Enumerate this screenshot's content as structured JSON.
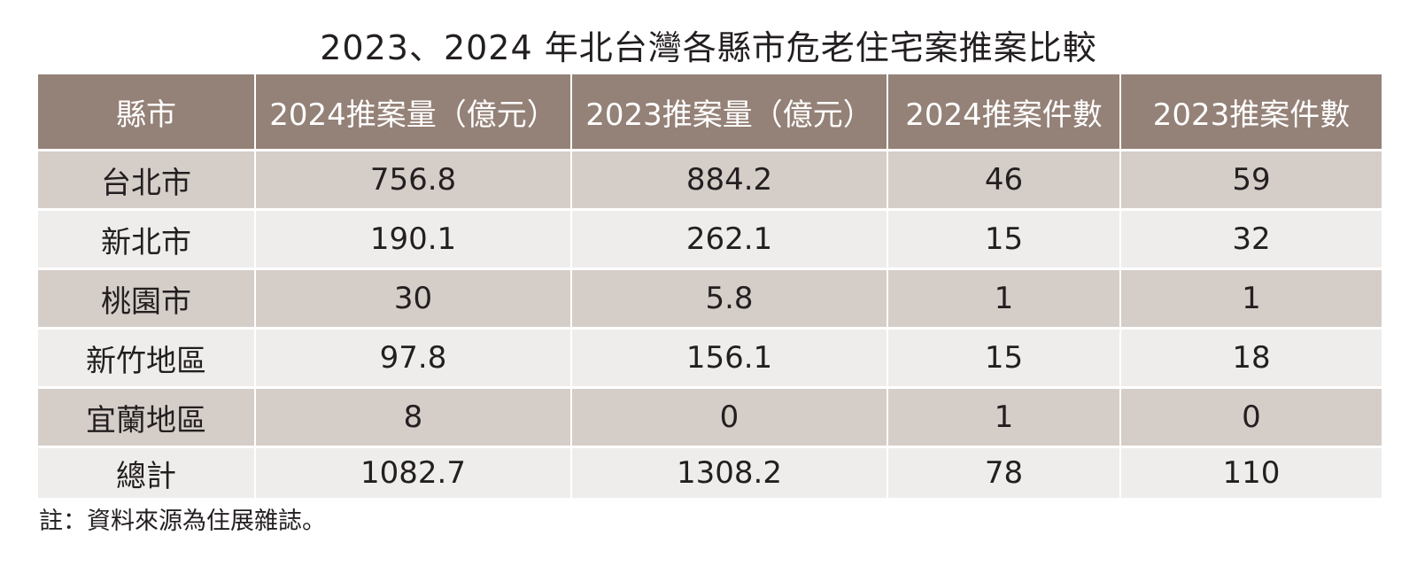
{
  "title": "2023、2024 年北台灣各縣市危老住宅案推案比較",
  "table": {
    "headers": [
      "縣市",
      "2024推案量（億元）",
      "2023推案量（億元）",
      "2024推案件數",
      "2023推案件數"
    ],
    "rows": [
      [
        "台北市",
        "756.8",
        "884.2",
        "46",
        "59"
      ],
      [
        "新北市",
        "190.1",
        "262.1",
        "15",
        "32"
      ],
      [
        "桃園市",
        "30",
        "5.8",
        "1",
        "1"
      ],
      [
        "新竹地區",
        "97.8",
        "156.1",
        "15",
        "18"
      ],
      [
        "宜蘭地區",
        "8",
        "0",
        "1",
        "0"
      ],
      [
        "總計",
        "1082.7",
        "1308.2",
        "78",
        "110"
      ]
    ]
  },
  "note": "註：資料來源為住展雜誌。",
  "colors": {
    "header_bg": "#948177",
    "row_dark_bg": "#d5cdc8",
    "row_light_bg": "#efedeb",
    "text": "#231f20"
  }
}
